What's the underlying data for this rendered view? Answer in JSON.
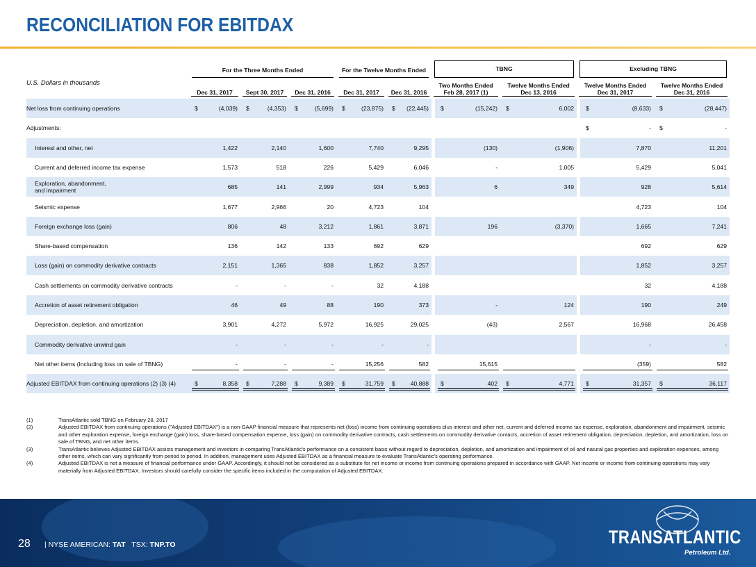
{
  "header": {
    "title": "RECONCILIATION FOR EBITDAX"
  },
  "table": {
    "units_label": "U.S. Dollars in thousands",
    "group_headers": [
      "For the Three Months Ended",
      "For the Twelve Months Ended",
      "TBNG",
      "Excluding TBNG"
    ],
    "columns": [
      "Dec 31, 2017",
      "Sept 30, 2017",
      "Dec 31, 2016",
      "Dec 31, 2017",
      "Dec 31, 2016",
      "Two Months Ended\nFeb 28, 2017 (1)",
      "Twelve Months Ended\nDec 13, 2016",
      "Twelve Months Ended\nDec 31, 2017",
      "Twelve Months Ended\nDec 31, 2016"
    ],
    "rows": [
      {
        "label": "Net loss from continuing operations",
        "cells": [
          [
            "$",
            "(4,039)"
          ],
          [
            "$",
            "(4,353)"
          ],
          [
            "$",
            "(5,699)"
          ],
          [
            "$",
            "(23,875)"
          ],
          [
            "$",
            "(22,445)"
          ],
          [
            "$",
            "(15,242)"
          ],
          [
            "$",
            "6,002"
          ],
          [
            "$",
            "(8,633)"
          ],
          [
            "$",
            "(28,447)"
          ]
        ]
      },
      {
        "label": "Adjustments:",
        "cells": [
          null,
          null,
          null,
          null,
          null,
          null,
          null,
          [
            "$",
            "-"
          ],
          [
            "$",
            "-"
          ]
        ]
      },
      {
        "label": "Interest and other, net",
        "cells": [
          "1,422",
          "2,140",
          "1,600",
          "7,740",
          "9,295",
          "(130)",
          "(1,906)",
          "7,870",
          "11,201"
        ]
      },
      {
        "label": "Current and deferred income tax expense",
        "cells": [
          "1,573",
          "518",
          "226",
          "5,429",
          "6,046",
          "-",
          "1,005",
          "5,429",
          "5,041"
        ]
      },
      {
        "label": "Exploration, abandonment,\nand impairment",
        "cells": [
          "685",
          "141",
          "2,999",
          "934",
          "5,963",
          "6",
          "349",
          "928",
          "5,614"
        ]
      },
      {
        "label": "Seismic expense",
        "cells": [
          "1,677",
          "2,966",
          "20",
          "4,723",
          "104",
          null,
          null,
          "4,723",
          "104"
        ]
      },
      {
        "label": "Foreign exchange loss (gain)",
        "cells": [
          "806",
          "48",
          "3,212",
          "1,861",
          "3,871",
          "196",
          "(3,370)",
          "1,665",
          "7,241"
        ]
      },
      {
        "label": "Share-based compensation",
        "cells": [
          "136",
          "142",
          "133",
          "692",
          "629",
          null,
          null,
          "692",
          "629"
        ]
      },
      {
        "label": "Loss (gain) on commodity derivative contracts",
        "cells": [
          "2,151",
          "1,365",
          "838",
          "1,852",
          "3,257",
          null,
          null,
          "1,852",
          "3,257"
        ]
      },
      {
        "label": "Cash settlements on commodity derivative contracts",
        "cells": [
          "-",
          "-",
          "-",
          "32",
          "4,188",
          null,
          null,
          "32",
          "4,188"
        ]
      },
      {
        "label": "Accretion of asset retirement obligation",
        "cells": [
          "46",
          "49",
          "88",
          "190",
          "373",
          "-",
          "124",
          "190",
          "249"
        ]
      },
      {
        "label": "Depreciation, depletion, and amortization",
        "cells": [
          "3,901",
          "4,272",
          "5,972",
          "16,925",
          "29,025",
          "(43)",
          "2,567",
          "16,968",
          "26,458"
        ]
      },
      {
        "label": "Commodity derivative unwind gain",
        "cells": [
          "-",
          "-",
          "-",
          "-",
          "-",
          null,
          null,
          "-",
          "-"
        ]
      },
      {
        "label": "Net other items (Including loss on sale of TBNG)",
        "cells": [
          "-",
          "-",
          "-",
          "15,256",
          "582",
          "15,615",
          null,
          "(359)",
          "582"
        ]
      },
      {
        "label": "Adjusted EBITDAX from continuing operations (2) (3) (4)",
        "cells": [
          [
            "$",
            "8,358"
          ],
          [
            "$",
            "7,288"
          ],
          [
            "$",
            "9,389"
          ],
          [
            "$",
            "31,759"
          ],
          [
            "$",
            "40,888"
          ],
          [
            "$",
            "402"
          ],
          [
            "$",
            "4,771"
          ],
          [
            "$",
            "31,357"
          ],
          [
            "$",
            "36,117"
          ]
        ]
      }
    ]
  },
  "footnotes": [
    {
      "marker": "(1)",
      "text": "TransAtlantic sold TBNG on February 28, 2017"
    },
    {
      "marker": "(2)",
      "text": "Adjusted EBITDAX from continuing operations (\"Adjusted EBITDAX\") is a non-GAAP financial measure that represents net (loss) income from continuing operations plus interest and other net, current and deferred income tax expense, exploration, abandonment and impairment, seismic and other exploration expense, foreign exchange (gain) loss, share-based compensation expense, loss (gain) on commodity derivative contracts, cash settlements on commodity derivative contacts, accretion of asset retirement obligation, depreciation, depletion, and amortization, loss on sale of TBNG, and net other items."
    },
    {
      "marker": "(3)",
      "text": "TransAtlantic believes Adjusted EBITDAX assists management and investors in comparing TransAtlantic's performance on a consistent basis without regard to depreciation, depletion, and amortization and impairment of oil and natural gas properties and exploration expenses, among other items, which can vary significantly from period to period. In addition, management uses Adjusted EBITDAX as a financial measure to evaluate TransAtlantic's operating performance."
    },
    {
      "marker": "(4)",
      "text": "Adjusted EBITDAX is not a measure of financial performance under GAAP. Accordingly, it should not be considered as a substitute for net income or income from continuing operations prepared in accordance with GAAP. Net income or income from continuing operations may vary materially from Adjusted EBITDAX. Investors should carefully consider the specific items included in the computation of Adjusted EBITDAX."
    }
  ],
  "footer": {
    "page_number": "28",
    "separator": "|",
    "exchange_1": "NYSE AMERICAN:",
    "ticker_1": "TAT",
    "exchange_2": "TSX:",
    "ticker_2": "TNP.TO",
    "logo": "TRANSATLANTIC",
    "logo_subtitle": "Petroleum Ltd."
  }
}
